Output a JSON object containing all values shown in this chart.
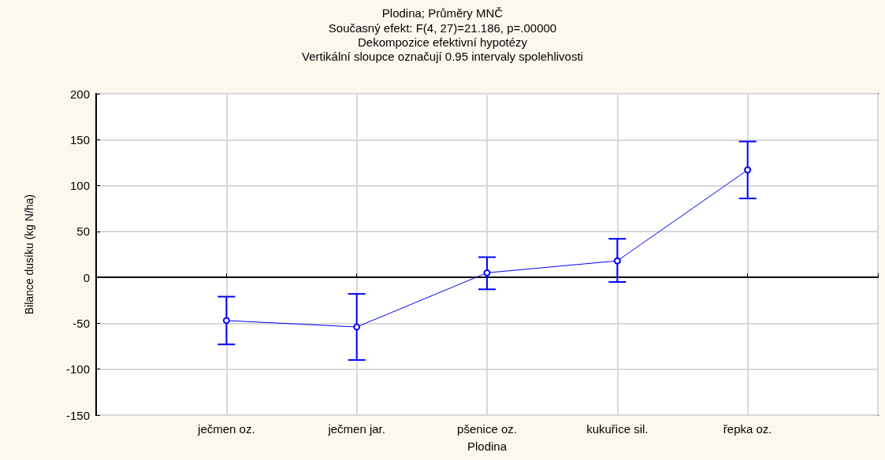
{
  "chart_data": {
    "type": "line",
    "title": "Plodina; Průměry MNČ",
    "subtitle": "Současný efekt: F(4, 27)=21.186, p=.00000\nDekompozice efektivní hypotézy\nVertikální sloupce označují 0.95 intervaly spolehlivosti",
    "xlabel": "Plodina",
    "ylabel": "Bilance dusíku (kg N/ha)",
    "categories": [
      "ječmen oz.",
      "ječmen jar.",
      "pšenice oz.",
      "kukuřice sil.",
      "řepka oz."
    ],
    "series": [
      {
        "color": "#0000ff",
        "values": [
          -47,
          -54,
          5,
          18,
          117
        ],
        "errors": [
          [
            -73,
            -21
          ],
          [
            -90,
            -18
          ],
          [
            -13,
            22
          ],
          [
            -5,
            42
          ],
          [
            86,
            148
          ]
        ]
      }
    ],
    "ylim": [
      -150,
      200
    ],
    "yticks": [
      -150,
      -100,
      -50,
      0,
      50,
      100,
      150,
      200
    ],
    "grid": true,
    "marker": "circle",
    "line_style": "solid"
  }
}
